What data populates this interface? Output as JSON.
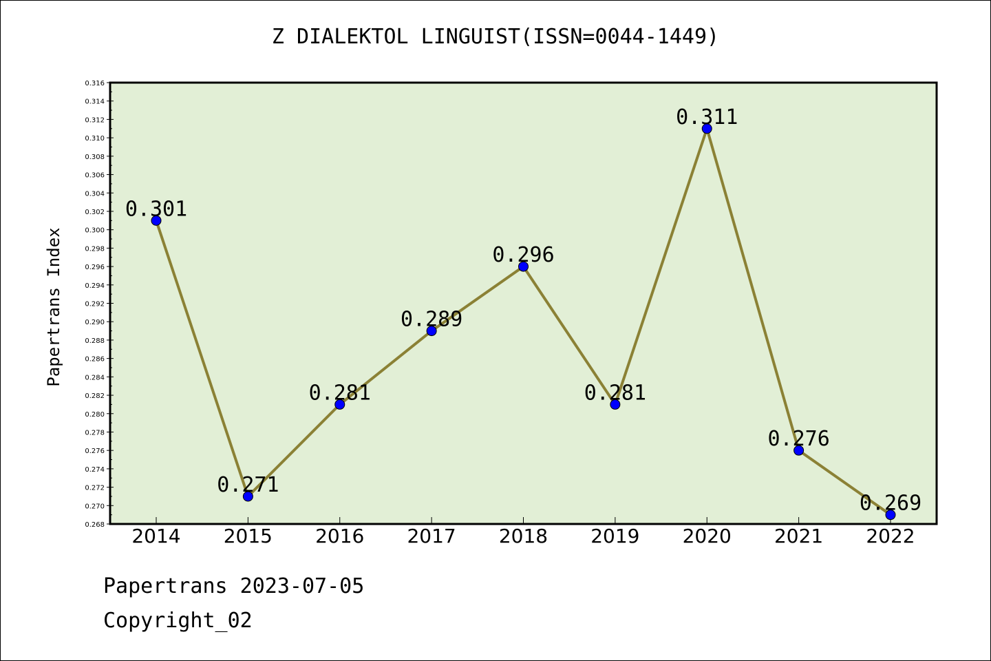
{
  "title": "Z DIALEKTOL LINGUIST(ISSN=0044-1449)",
  "footer": {
    "line1": "Papertrans 2023-07-05",
    "line2": "Copyright_02"
  },
  "colors": {
    "plot_bg": "#e2efd6",
    "line": "#8b8135",
    "marker": "#0000ff"
  },
  "chart_data": {
    "type": "line",
    "title": "Z DIALEKTOL LINGUIST(ISSN=0044-1449)",
    "xlabel": "",
    "ylabel": "Papertrans Index",
    "categories": [
      "2014",
      "2015",
      "2016",
      "2017",
      "2018",
      "2019",
      "2020",
      "2021",
      "2022"
    ],
    "series": [
      {
        "values": [
          0.301,
          0.271,
          0.281,
          0.289,
          0.296,
          0.281,
          0.311,
          0.276,
          0.269
        ],
        "labels": [
          "0.301",
          "0.271",
          "0.281",
          "0.289",
          "0.296",
          "0.281",
          "0.311",
          "0.276",
          "0.269"
        ]
      }
    ],
    "ylim": [
      0.268,
      0.316
    ],
    "ytick_step": 0.002,
    "grid": false,
    "legend": "none"
  }
}
